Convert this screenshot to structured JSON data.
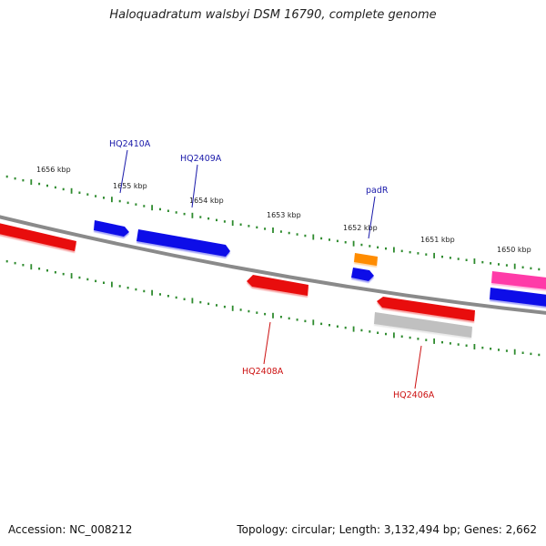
{
  "title": "Haloquadratum walsbyi DSM 16790, complete genome",
  "footer": {
    "accession": "Accession: NC_008212",
    "summary": "Topology: circular; Length: 3,132,494 bp; Genes: 2,662"
  },
  "colors": {
    "backbone": "#8a8a8a",
    "tick": "#2e8b2e",
    "forward_strand": "#1010e8",
    "reverse_strand": "#e81010",
    "rna": "#ff8c00",
    "pseudo": "#c0c0c0",
    "other": "#ff3aa8",
    "forward_label": "#1a1aaa",
    "reverse_label": "#cc1010"
  },
  "scale": {
    "unit": "kbp",
    "tick_labels": [
      "1656 kbp",
      "1655 kbp",
      "1654 kbp",
      "1653 kbp",
      "1652 kbp",
      "1651 kbp",
      "1650 kbp"
    ]
  },
  "genes": {
    "forward": [
      {
        "name": "HQ2410A",
        "color": "forward_strand"
      },
      {
        "name": "HQ2409A",
        "color": "forward_strand"
      },
      {
        "name": "padR",
        "color": "forward_strand"
      },
      {
        "name": "",
        "color": "forward_strand"
      }
    ],
    "reverse": [
      {
        "name": "",
        "color": "reverse_strand"
      },
      {
        "name": "HQ2408A",
        "color": "reverse_strand"
      },
      {
        "name": "HQ2406A",
        "color": "reverse_strand"
      }
    ],
    "other": [
      {
        "name": "",
        "color": "rna"
      },
      {
        "name": "",
        "color": "pseudo"
      },
      {
        "name": "",
        "color": "other"
      }
    ]
  }
}
